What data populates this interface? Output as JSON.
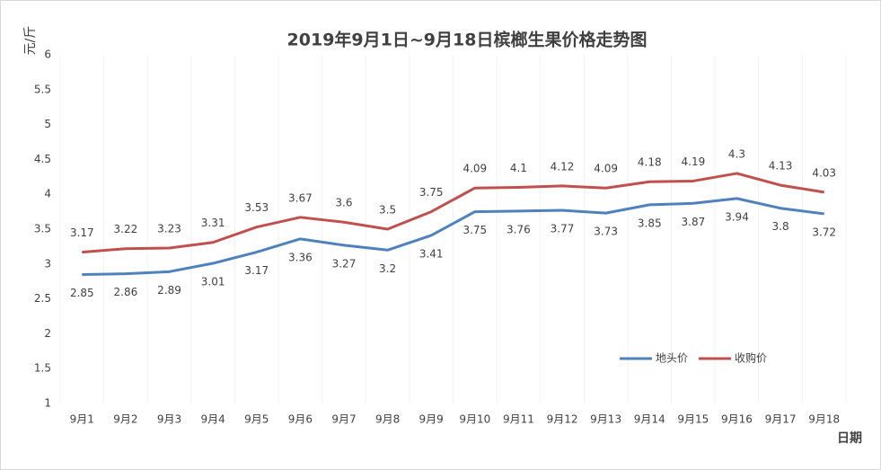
{
  "chart_data": {
    "type": "line",
    "title": "2019年9月1日~9月18日槟榔生果价格走势图",
    "y_label": "元/斤",
    "x_label": "日期",
    "categories": [
      "9月1",
      "9月2",
      "9月3",
      "9月4",
      "9月5",
      "9月6",
      "9月7",
      "9月8",
      "9月9",
      "9月10",
      "9月11",
      "9月12",
      "9月13",
      "9月14",
      "9月15",
      "9月16",
      "9月17",
      "9月18"
    ],
    "series": [
      {
        "name": "地头价",
        "color": "#4f81bd",
        "values": [
          2.85,
          2.86,
          2.89,
          3.01,
          3.17,
          3.36,
          3.27,
          3.2,
          3.41,
          3.75,
          3.76,
          3.77,
          3.73,
          3.85,
          3.87,
          3.94,
          3.8,
          3.72
        ]
      },
      {
        "name": "收购价",
        "color": "#c0504d",
        "values": [
          3.17,
          3.22,
          3.23,
          3.31,
          3.53,
          3.67,
          3.6,
          3.5,
          3.75,
          4.09,
          4.1,
          4.12,
          4.09,
          4.18,
          4.19,
          4.3,
          4.13,
          4.03
        ]
      }
    ],
    "ylim": [
      1,
      6
    ],
    "yticks": [
      1,
      1.5,
      2,
      2.5,
      3,
      3.5,
      4,
      4.5,
      5,
      5.5,
      6
    ],
    "legend": "bottom-right"
  }
}
